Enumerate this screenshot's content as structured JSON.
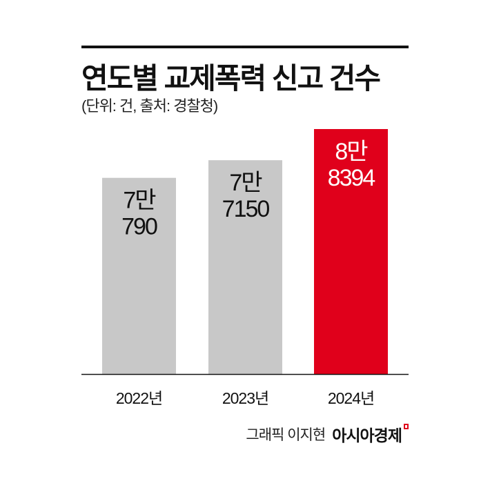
{
  "chart_data": {
    "type": "bar",
    "title": "연도별 교제폭력 신고 건수",
    "subtitle": "(단위: 건, 출처: 경찰청)",
    "categories": [
      "2022년",
      "2023년",
      "2024년"
    ],
    "values": [
      70790,
      77150,
      88394
    ],
    "data_labels": [
      [
        "7만",
        "790"
      ],
      [
        "7만",
        "7150"
      ],
      [
        "8만",
        "8394"
      ]
    ],
    "bar_colors": [
      "#c8c8c8",
      "#c8c8c8",
      "#e0001b"
    ],
    "label_colors": [
      "#111111",
      "#111111",
      "#ffffff"
    ],
    "ylim": [
      0,
      88394
    ],
    "grid": false,
    "legend": "none"
  },
  "credit": {
    "byline": "그래픽 이지현",
    "logo": "아시아경제"
  }
}
